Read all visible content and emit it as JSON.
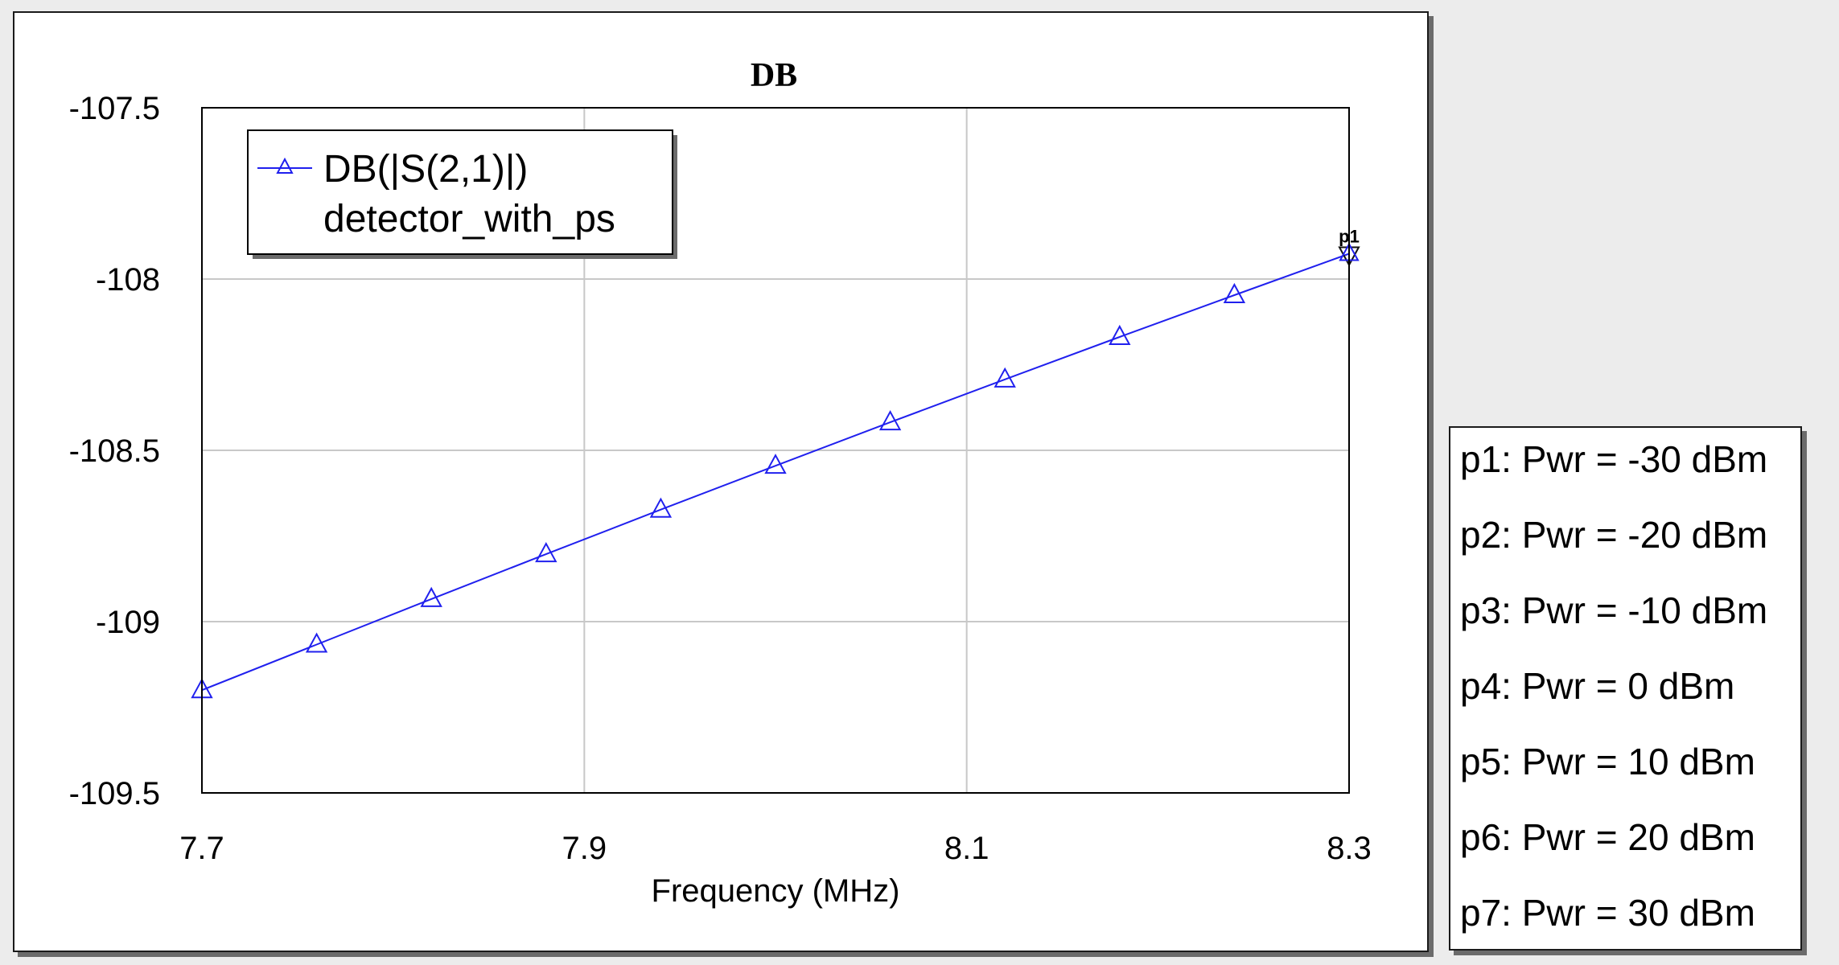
{
  "colors": {
    "series": "#2020ee",
    "grid": "#c8c8c8",
    "marker_end": "#111111"
  },
  "chart_data": {
    "type": "line",
    "title": "DB",
    "xlabel": "Frequency (MHz)",
    "ylabel": "",
    "xlim": [
      7.7,
      8.3
    ],
    "ylim": [
      -109.5,
      -107.5
    ],
    "xticks": [
      "7.7",
      "7.9",
      "8.1",
      "8.3"
    ],
    "yticks": [
      "-107.5",
      "-108",
      "-108.5",
      "-109",
      "-109.5"
    ],
    "grid": true,
    "legend_position": "top-left",
    "legend": {
      "series_label": "DB(|S(2,1)|)",
      "source_label": "detector_with_ps"
    },
    "series": [
      {
        "name": "DB(|S(2,1)|)",
        "x": [
          7.7,
          7.76,
          7.82,
          7.88,
          7.94,
          8.0,
          8.06,
          8.12,
          8.18,
          8.24,
          8.3
        ],
        "y": [
          -109.2,
          -109.067,
          -108.934,
          -108.803,
          -108.673,
          -108.545,
          -108.418,
          -108.293,
          -108.169,
          -108.047,
          -107.926
        ],
        "marker": "triangle-up"
      }
    ],
    "end_marker": {
      "label": "p1",
      "x": 8.3,
      "y": -107.926,
      "marker": "triangle-down"
    }
  },
  "param_panel": {
    "items": [
      "p1: Pwr = -30 dBm",
      "p2: Pwr = -20 dBm",
      "p3: Pwr = -10 dBm",
      "p4: Pwr = 0 dBm",
      "p5: Pwr = 10 dBm",
      "p6: Pwr = 20 dBm",
      "p7: Pwr = 30 dBm"
    ]
  }
}
